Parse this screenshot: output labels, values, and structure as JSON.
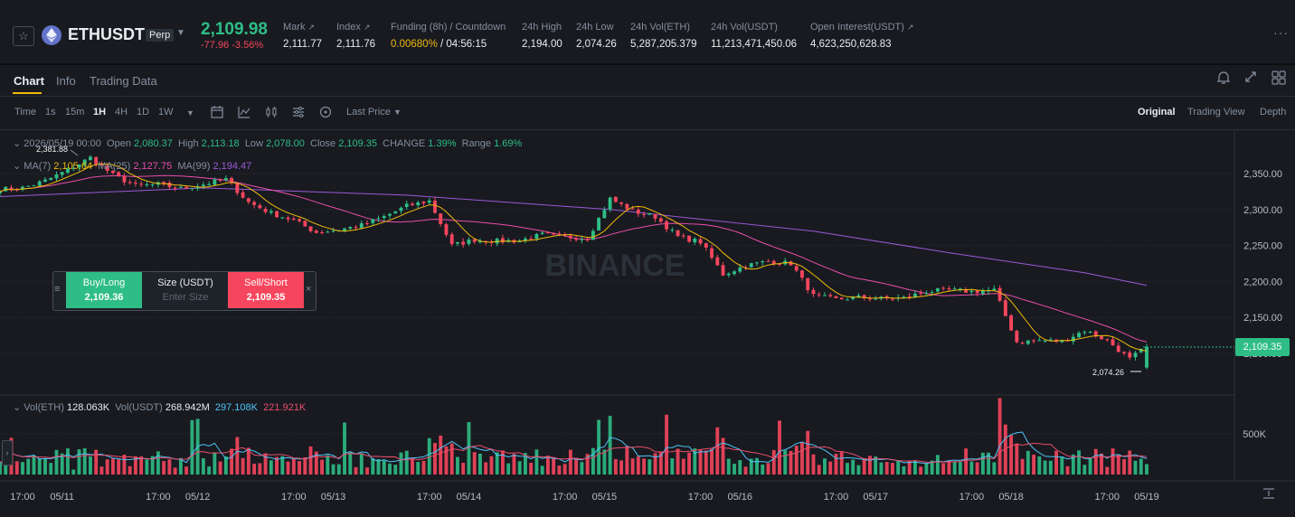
{
  "ticker": {
    "symbol": "ETHUSDT",
    "badge": "Perp",
    "last_price": "2,109.98",
    "change_abs": "-77.96",
    "change_pct": "-3.56%",
    "stats": [
      {
        "label": "Mark",
        "value": "2,111.77",
        "ext": true
      },
      {
        "label": "Index",
        "value": "2,111.76",
        "ext": true
      },
      {
        "label": "Funding (8h) / Countdown",
        "rate": "0.00680%",
        "countdown": "/ 04:56:15"
      },
      {
        "label": "24h High",
        "value": "2,194.00"
      },
      {
        "label": "24h Low",
        "value": "2,074.26"
      },
      {
        "label": "24h Vol(ETH)",
        "value": "5,287,205.379"
      },
      {
        "label": "24h Vol(USDT)",
        "value": "11,213,471,450.06"
      },
      {
        "label": "Open Interest(USDT)",
        "value": "4,623,250,628.83",
        "ext": true
      }
    ],
    "more": "···"
  },
  "tabs": [
    "Chart",
    "Info",
    "Trading Data"
  ],
  "toolbar": {
    "time_label": "Time",
    "intervals": [
      "1s",
      "15m",
      "1H",
      "4H",
      "1D",
      "1W"
    ],
    "active_interval": "1H",
    "price_type": "Last Price",
    "views": [
      "Original",
      "Trading View",
      "Depth"
    ],
    "active_view": "Original"
  },
  "legend": {
    "date": "2026/05/19 00:00",
    "open_label": "Open",
    "open": "2,080.37",
    "high_label": "High",
    "high": "2,113.18",
    "low_label": "Low",
    "low": "2,078.00",
    "close_label": "Close",
    "close": "2,109.35",
    "change_label": "CHANGE",
    "change": "1.39%",
    "range_label": "Range",
    "range": "1.69%",
    "ma7_label": "MA(7)",
    "ma7": "2,105.64",
    "ma25_label": "MA(25)",
    "ma25": "2,127.75",
    "ma99_label": "MA(99)",
    "ma99": "2,194.47",
    "vol_eth_label": "Vol(ETH)",
    "vol_eth": "128.063K",
    "vol_usdt_label": "Vol(USDT)",
    "vol_usdt": "268.942M",
    "vol_ma5": "297.108K",
    "vol_ma10": "221.921K"
  },
  "trade_box": {
    "buy_label": "Buy/Long",
    "buy_price": "2,109.36",
    "size_label": "Size (USDT)",
    "size_placeholder": "Enter Size",
    "sell_label": "Sell/Short",
    "sell_price": "2,109.35"
  },
  "watermark": "BINANCE",
  "chart_data": {
    "type": "candlestick",
    "y_axis_ticks": [
      "2,350.00",
      "2,300.00",
      "2,250.00",
      "2,200.00",
      "2,150.00",
      "2,100.00"
    ],
    "y_range": [
      2070,
      2390
    ],
    "volume_axis_ticks": [
      "500K"
    ],
    "x_axis_ticks": [
      "17:00",
      "05/11",
      "17:00",
      "05/12",
      "17:00",
      "05/13",
      "17:00",
      "05/14",
      "17:00",
      "05/15",
      "17:00",
      "05/16",
      "17:00",
      "05/17",
      "17:00",
      "05/18",
      "17:00",
      "05/19"
    ],
    "high_marker": "2,381.88",
    "low_marker": "2,074.26",
    "current_price": "2,109.35",
    "ma_colors": {
      "ma7": "#f0b90b",
      "ma25": "#eb4dab",
      "ma99": "#9b59d6"
    },
    "up_color": "#2ebd85",
    "down_color": "#f6465d",
    "close_series": [
      {
        "x": "05/10 13:00",
        "y": 2328
      },
      {
        "x": "05/10 17:00",
        "y": 2330
      },
      {
        "x": "05/10 21:00",
        "y": 2340
      },
      {
        "x": "05/11 01:00",
        "y": 2355
      },
      {
        "x": "05/11 05:00",
        "y": 2372
      },
      {
        "x": "05/11 09:00",
        "y": 2348
      },
      {
        "x": "05/11 13:00",
        "y": 2333
      },
      {
        "x": "05/11 17:00",
        "y": 2335
      },
      {
        "x": "05/11 21:00",
        "y": 2329
      },
      {
        "x": "05/12 01:00",
        "y": 2335
      },
      {
        "x": "05/12 05:00",
        "y": 2342
      },
      {
        "x": "05/12 09:00",
        "y": 2310
      },
      {
        "x": "05/12 13:00",
        "y": 2295
      },
      {
        "x": "05/12 17:00",
        "y": 2285
      },
      {
        "x": "05/12 21:00",
        "y": 2268
      },
      {
        "x": "05/13 01:00",
        "y": 2272
      },
      {
        "x": "05/13 05:00",
        "y": 2278
      },
      {
        "x": "05/13 09:00",
        "y": 2290
      },
      {
        "x": "05/13 13:00",
        "y": 2305
      },
      {
        "x": "05/13 17:00",
        "y": 2312
      },
      {
        "x": "05/13 21:00",
        "y": 2250
      },
      {
        "x": "05/14 01:00",
        "y": 2258
      },
      {
        "x": "05/14 05:00",
        "y": 2256
      },
      {
        "x": "05/14 09:00",
        "y": 2257
      },
      {
        "x": "05/14 13:00",
        "y": 2265
      },
      {
        "x": "05/14 17:00",
        "y": 2262
      },
      {
        "x": "05/14 21:00",
        "y": 2260
      },
      {
        "x": "05/15 01:00",
        "y": 2315
      },
      {
        "x": "05/15 05:00",
        "y": 2298
      },
      {
        "x": "05/15 09:00",
        "y": 2290
      },
      {
        "x": "05/15 13:00",
        "y": 2262
      },
      {
        "x": "05/15 17:00",
        "y": 2255
      },
      {
        "x": "05/15 21:00",
        "y": 2210
      },
      {
        "x": "05/16 01:00",
        "y": 2222
      },
      {
        "x": "05/16 05:00",
        "y": 2228
      },
      {
        "x": "05/16 09:00",
        "y": 2225
      },
      {
        "x": "05/16 13:00",
        "y": 2180
      },
      {
        "x": "05/16 17:00",
        "y": 2175
      },
      {
        "x": "05/16 21:00",
        "y": 2178
      },
      {
        "x": "05/17 01:00",
        "y": 2176
      },
      {
        "x": "05/17 05:00",
        "y": 2177
      },
      {
        "x": "05/17 09:00",
        "y": 2186
      },
      {
        "x": "05/17 13:00",
        "y": 2188
      },
      {
        "x": "05/17 17:00",
        "y": 2186
      },
      {
        "x": "05/17 21:00",
        "y": 2188
      },
      {
        "x": "05/18 01:00",
        "y": 2116
      },
      {
        "x": "05/18 05:00",
        "y": 2118
      },
      {
        "x": "05/18 09:00",
        "y": 2117
      },
      {
        "x": "05/18 13:00",
        "y": 2132
      },
      {
        "x": "05/18 17:00",
        "y": 2118
      },
      {
        "x": "05/18 21:00",
        "y": 2092
      },
      {
        "x": "05/19 00:00",
        "y": 2109.35
      }
    ],
    "ma99_series": [
      {
        "x": "05/10 13:00",
        "y": 2318
      },
      {
        "x": "05/12 01:00",
        "y": 2330
      },
      {
        "x": "05/13 13:00",
        "y": 2320
      },
      {
        "x": "05/15 01:00",
        "y": 2300
      },
      {
        "x": "05/16 13:00",
        "y": 2270
      },
      {
        "x": "05/17 13:00",
        "y": 2240
      },
      {
        "x": "05/18 13:00",
        "y": 2212
      },
      {
        "x": "05/19 00:00",
        "y": 2194.47
      }
    ]
  }
}
